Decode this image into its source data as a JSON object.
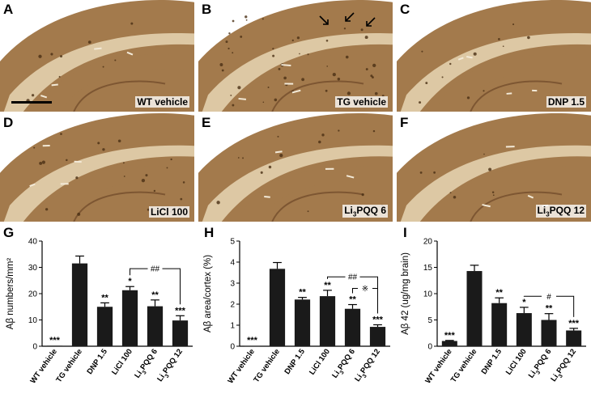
{
  "figure": {
    "panels": [
      {
        "letter": "A",
        "label": "WT vehicle",
        "sub": "",
        "after": ""
      },
      {
        "letter": "B",
        "label": "TG vehicle",
        "sub": "",
        "after": ""
      },
      {
        "letter": "C",
        "label": "DNP 1.5",
        "sub": "",
        "after": ""
      },
      {
        "letter": "D",
        "label": "LiCl 100",
        "sub": "",
        "after": ""
      },
      {
        "letter": "E",
        "label": "Li",
        "sub": "3",
        "after": "PQQ 6"
      },
      {
        "letter": "F",
        "label": "Li",
        "sub": "3",
        "after": "PQQ 12"
      }
    ],
    "colors": {
      "tissue": "#a37a4c",
      "tissue_dark": "#7d5632",
      "white_matter": "#ddc8a4",
      "bar": "#1a1a1a"
    }
  },
  "chart_data": [
    {
      "letter": "G",
      "type": "bar",
      "ylabel": "Aβ numbers/mm²",
      "ylim": [
        0,
        40
      ],
      "yticks": [
        0,
        10,
        20,
        30,
        40
      ],
      "categories": [
        "WT vehicle",
        "TG vehicle",
        "DNP 1.5",
        "LiCl 100",
        "Li3PQQ 6",
        "Li3PQQ 12"
      ],
      "values": [
        0.2,
        31.5,
        15.0,
        21.3,
        15.2,
        9.8
      ],
      "errors": [
        0.1,
        2.8,
        1.5,
        1.4,
        2.4,
        1.8
      ],
      "sig": [
        "***",
        "",
        "**",
        "*",
        "**",
        "***"
      ],
      "bracket": {
        "from": 3,
        "to": 5,
        "label": "##",
        "y": 29.5
      }
    },
    {
      "letter": "H",
      "type": "bar",
      "ylabel": "Aβ  area/cortex (%)",
      "ylim": [
        0,
        5
      ],
      "yticks": [
        0,
        1,
        2,
        3,
        4,
        5
      ],
      "categories": [
        "WT vehicle",
        "TG vehicle",
        "DNP 1.5",
        "LiCl 100",
        "Li3PQQ 6",
        "Li3PQQ 12"
      ],
      "values": [
        0.02,
        3.68,
        2.22,
        2.38,
        1.78,
        0.92
      ],
      "errors": [
        0.01,
        0.3,
        0.1,
        0.28,
        0.2,
        0.1
      ],
      "sig": [
        "***",
        "",
        "**",
        "**",
        "**",
        "***"
      ],
      "bracket": {
        "from": 3,
        "to": 5,
        "label": "##",
        "y": 3.3
      },
      "bracket2": {
        "from": 4,
        "to": 5,
        "label": "※",
        "y": 2.75
      }
    },
    {
      "letter": "I",
      "type": "bar",
      "ylabel": "Aβ 42 (ug/mg brain)",
      "ylim": [
        0,
        20
      ],
      "yticks": [
        0,
        5,
        10,
        15,
        20
      ],
      "categories": [
        "WT vehicle",
        "TG vehicle",
        "DNP 1.5",
        "LiCl 100",
        "Li3PQQ 6",
        "Li3PQQ 12"
      ],
      "values": [
        1.0,
        14.3,
        8.2,
        6.3,
        5.0,
        3.0
      ],
      "errors": [
        0.1,
        1.1,
        1.0,
        1.1,
        1.2,
        0.4
      ],
      "sig": [
        "***",
        "",
        "**",
        "*",
        "**",
        "***"
      ],
      "bracket": {
        "from": 3,
        "to": 5,
        "label": "#",
        "y": 9.5
      }
    }
  ]
}
